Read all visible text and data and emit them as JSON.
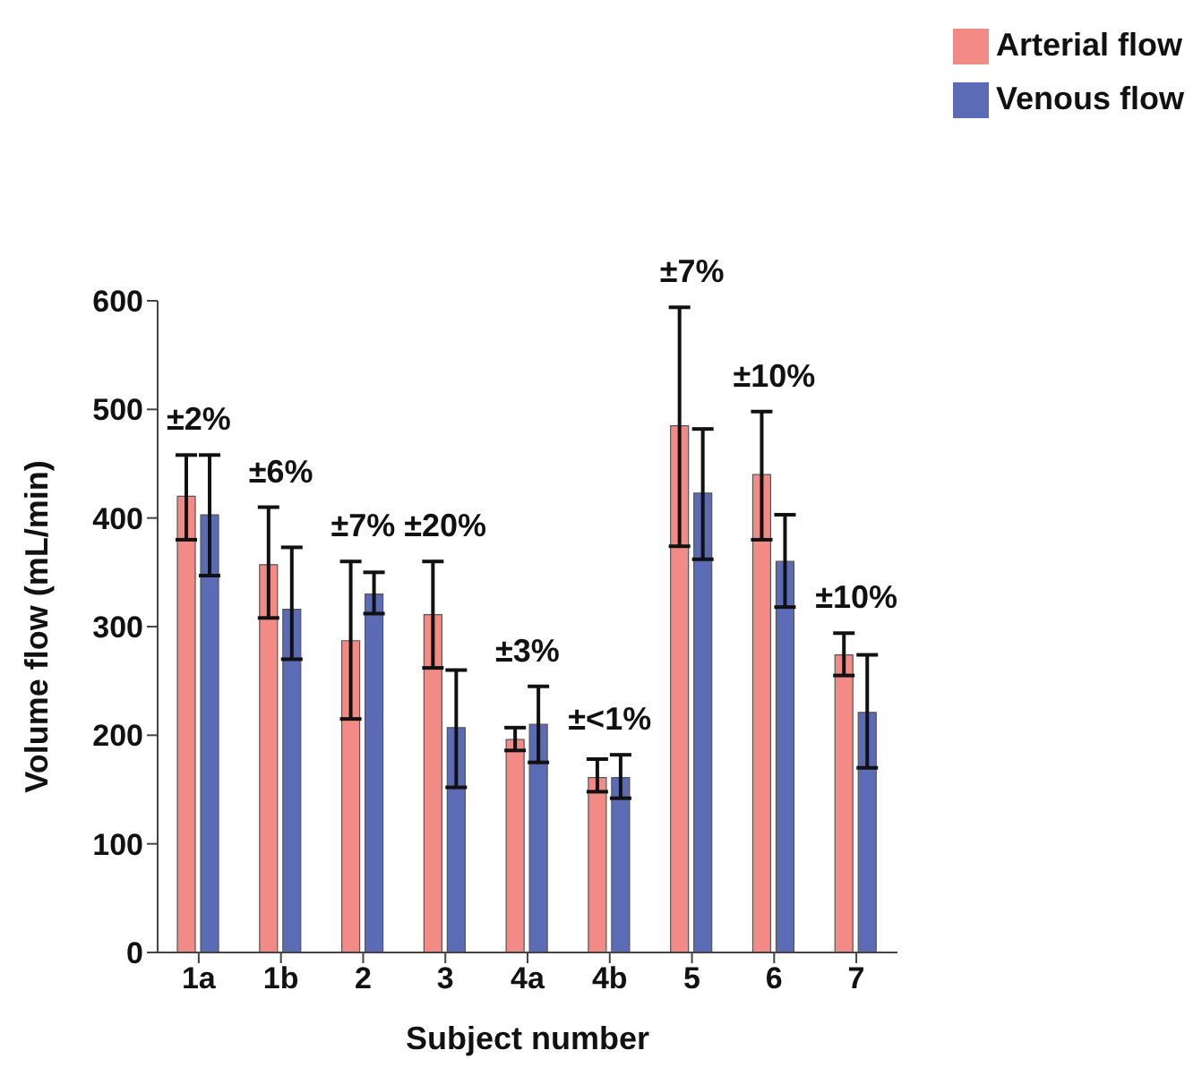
{
  "chart_data": {
    "type": "bar",
    "xlabel": "Subject number",
    "ylabel": "Volume flow (mL/min)",
    "categories": [
      "1a",
      "1b",
      "2",
      "3",
      "4a",
      "4b",
      "5",
      "6",
      "7"
    ],
    "series": [
      {
        "name": "Arterial flow",
        "color": "#f28b86",
        "values": [
          420,
          357,
          287,
          311,
          196,
          161,
          485,
          440,
          274
        ],
        "errors": [
          [
            380,
            458
          ],
          [
            308,
            410
          ],
          [
            215,
            360
          ],
          [
            262,
            360
          ],
          [
            186,
            207
          ],
          [
            148,
            178
          ],
          [
            374,
            594
          ],
          [
            380,
            498
          ],
          [
            255,
            294
          ]
        ]
      },
      {
        "name": "Venous flow",
        "color": "#5c6bb5",
        "values": [
          403,
          316,
          330,
          207,
          210,
          161,
          423,
          360,
          221
        ],
        "errors": [
          [
            347,
            458
          ],
          [
            270,
            373
          ],
          [
            312,
            350
          ],
          [
            152,
            260
          ],
          [
            175,
            245
          ],
          [
            142,
            182
          ],
          [
            362,
            482
          ],
          [
            318,
            403
          ],
          [
            170,
            274
          ]
        ]
      }
    ],
    "annotations": [
      {
        "text": "±2%",
        "x": "1a",
        "y": 458
      },
      {
        "text": "±6%",
        "x": "1b",
        "y": 410
      },
      {
        "text": "±7%",
        "x": "2",
        "y": 360
      },
      {
        "text": "±20%",
        "x": "3",
        "y": 360
      },
      {
        "text": "±3%",
        "x": "4a",
        "y": 245
      },
      {
        "text": "±<1%",
        "x": "4b",
        "y": 182
      },
      {
        "text": "±7%",
        "x": "5",
        "y": 594
      },
      {
        "text": "±10%",
        "x": "6",
        "y": 498
      },
      {
        "text": "±10%",
        "x": "7",
        "y": 294
      }
    ],
    "ylim": [
      0,
      600
    ],
    "yticks": [
      0,
      100,
      200,
      300,
      400,
      500,
      600
    ],
    "grid": false,
    "legend": "top right"
  }
}
